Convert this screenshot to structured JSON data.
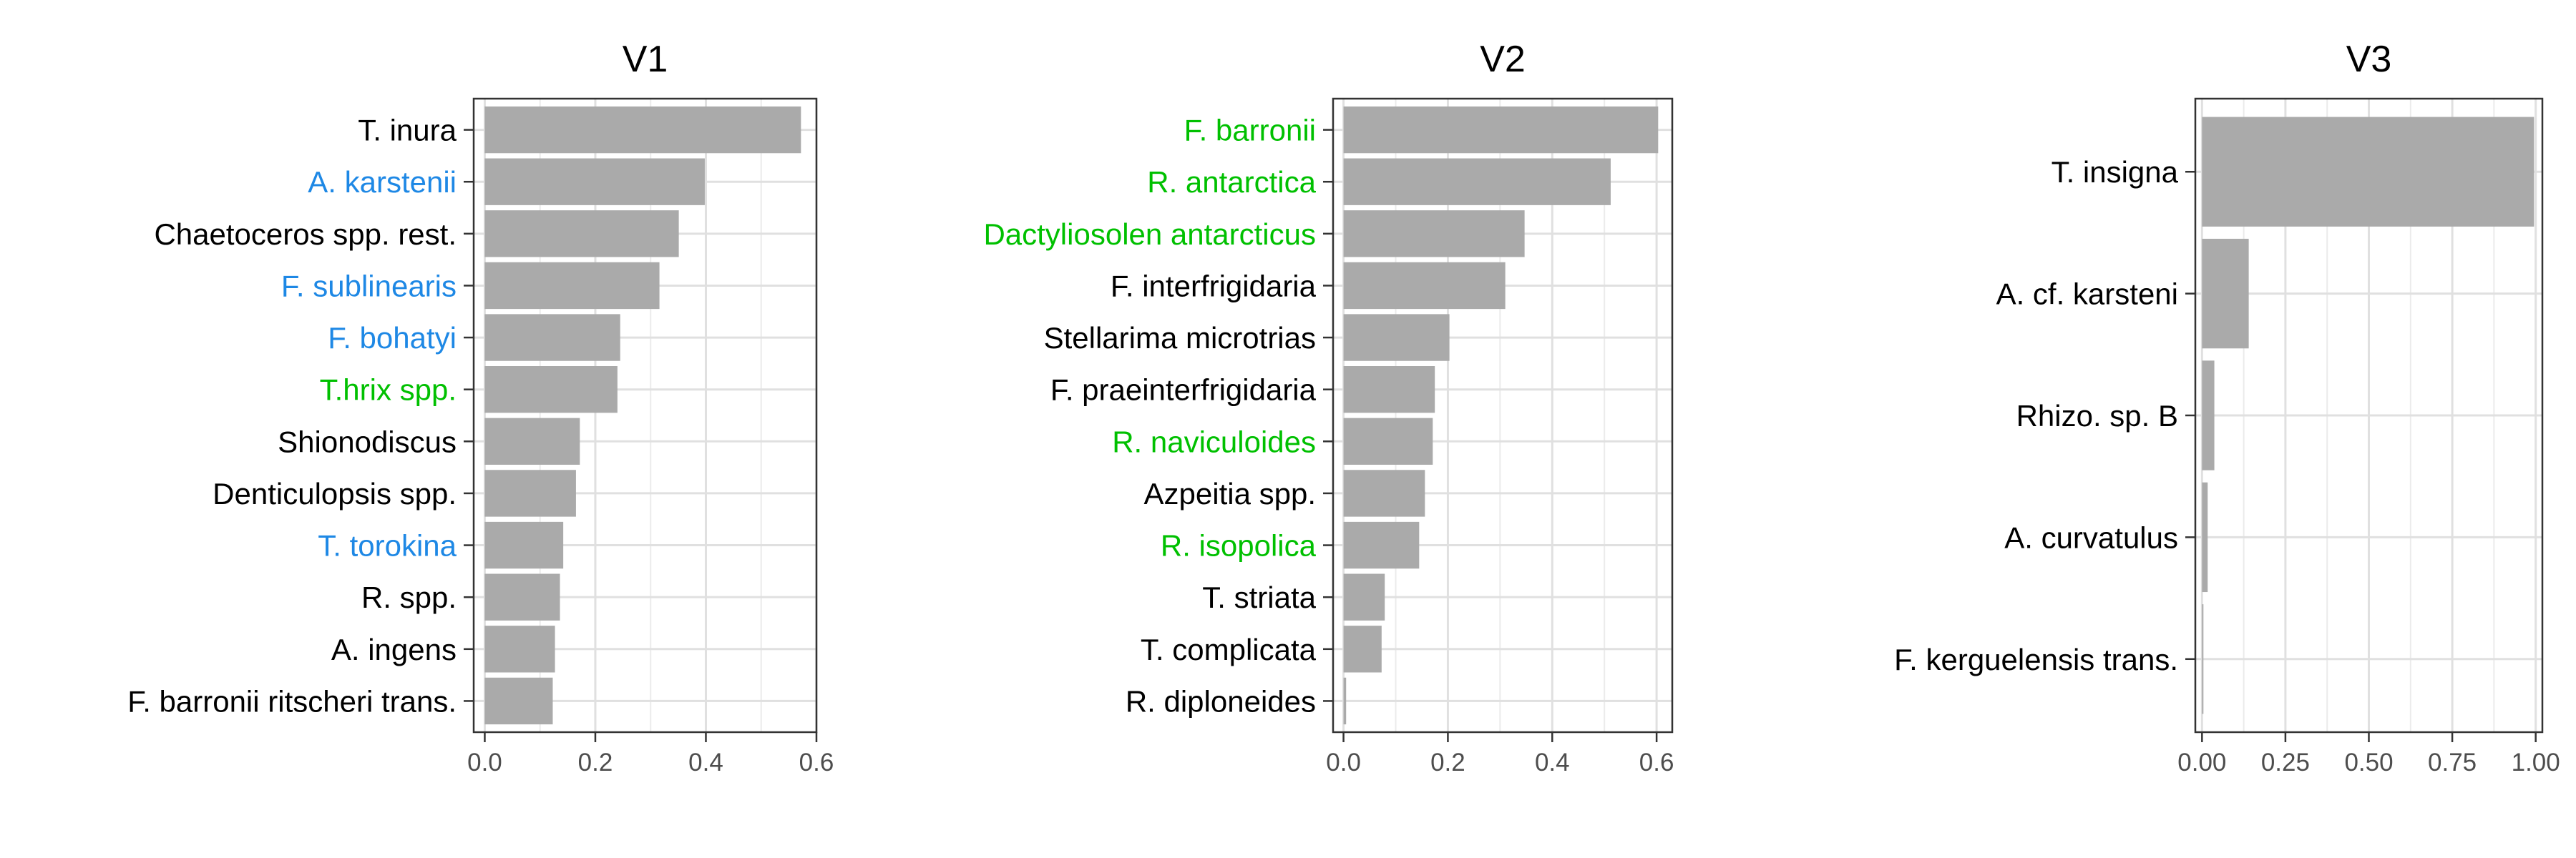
{
  "chart_data": [
    {
      "type": "bar",
      "orientation": "horizontal",
      "title": "V1",
      "xlabel": "",
      "ylabel": "",
      "xlim": [
        -0.02,
        0.6
      ],
      "x_ticks": [
        0.0,
        0.2,
        0.4,
        0.6
      ],
      "x_tick_labels": [
        "0.0",
        "0.2",
        "0.4",
        "0.6"
      ],
      "grid": true,
      "bar_color": "#aaaaaa",
      "categories": [
        "T. inura",
        "A. karstenii",
        "Chaetoceros spp. rest.",
        "F. sublinearis",
        "F. bohatyi",
        "T.hrix spp.",
        "Shionodiscus",
        "Denticulopsis spp.",
        "T. torokina",
        "R. spp.",
        "A. ingens",
        "F. barronii ritscheri trans."
      ],
      "label_colors": [
        "#000000",
        "#1e88e5",
        "#000000",
        "#1e88e5",
        "#1e88e5",
        "#00c000",
        "#000000",
        "#000000",
        "#1e88e5",
        "#000000",
        "#000000",
        "#000000"
      ],
      "values": [
        0.572,
        0.398,
        0.351,
        0.316,
        0.245,
        0.24,
        0.172,
        0.165,
        0.142,
        0.136,
        0.127,
        0.123
      ]
    },
    {
      "type": "bar",
      "orientation": "horizontal",
      "title": "V2",
      "xlabel": "",
      "ylabel": "",
      "xlim": [
        -0.02,
        0.63
      ],
      "x_ticks": [
        0.0,
        0.2,
        0.4,
        0.6
      ],
      "x_tick_labels": [
        "0.0",
        "0.2",
        "0.4",
        "0.6"
      ],
      "grid": true,
      "bar_color": "#aaaaaa",
      "categories": [
        "F. barronii",
        "R. antarctica",
        "Dactyliosolen antarcticus",
        "F. interfrigidaria",
        "Stellarima microtrias ",
        "F. praeinterfrigidaria",
        "R. naviculoides",
        "Azpeitia spp.",
        "R. isopolica",
        "T. striata",
        "T. complicata",
        "R. diploneides"
      ],
      "label_colors": [
        "#00c000",
        "#00c000",
        "#00c000",
        "#000000",
        "#000000",
        "#000000",
        "#00c000",
        "#000000",
        "#00c000",
        "#000000",
        "#000000",
        "#000000"
      ],
      "values": [
        0.603,
        0.512,
        0.347,
        0.31,
        0.203,
        0.175,
        0.171,
        0.156,
        0.145,
        0.079,
        0.073,
        0.005
      ]
    },
    {
      "type": "bar",
      "orientation": "horizontal",
      "title": "V3",
      "xlabel": "",
      "ylabel": "",
      "xlim": [
        -0.02,
        1.02
      ],
      "x_ticks": [
        0.0,
        0.25,
        0.5,
        0.75,
        1.0
      ],
      "x_tick_labels": [
        "0.00",
        "0.25",
        "0.50",
        "0.75",
        "1.00"
      ],
      "grid": true,
      "bar_color": "#aaaaaa",
      "categories": [
        "T. insigna",
        "A. cf. karsteni",
        "Rhizo. sp. B",
        "A. curvatulus",
        "F. kerguelensis trans."
      ],
      "label_colors": [
        "#000000",
        "#000000",
        "#000000",
        "#000000",
        "#000000"
      ],
      "values": [
        0.995,
        0.14,
        0.037,
        0.017,
        0.004
      ]
    }
  ]
}
